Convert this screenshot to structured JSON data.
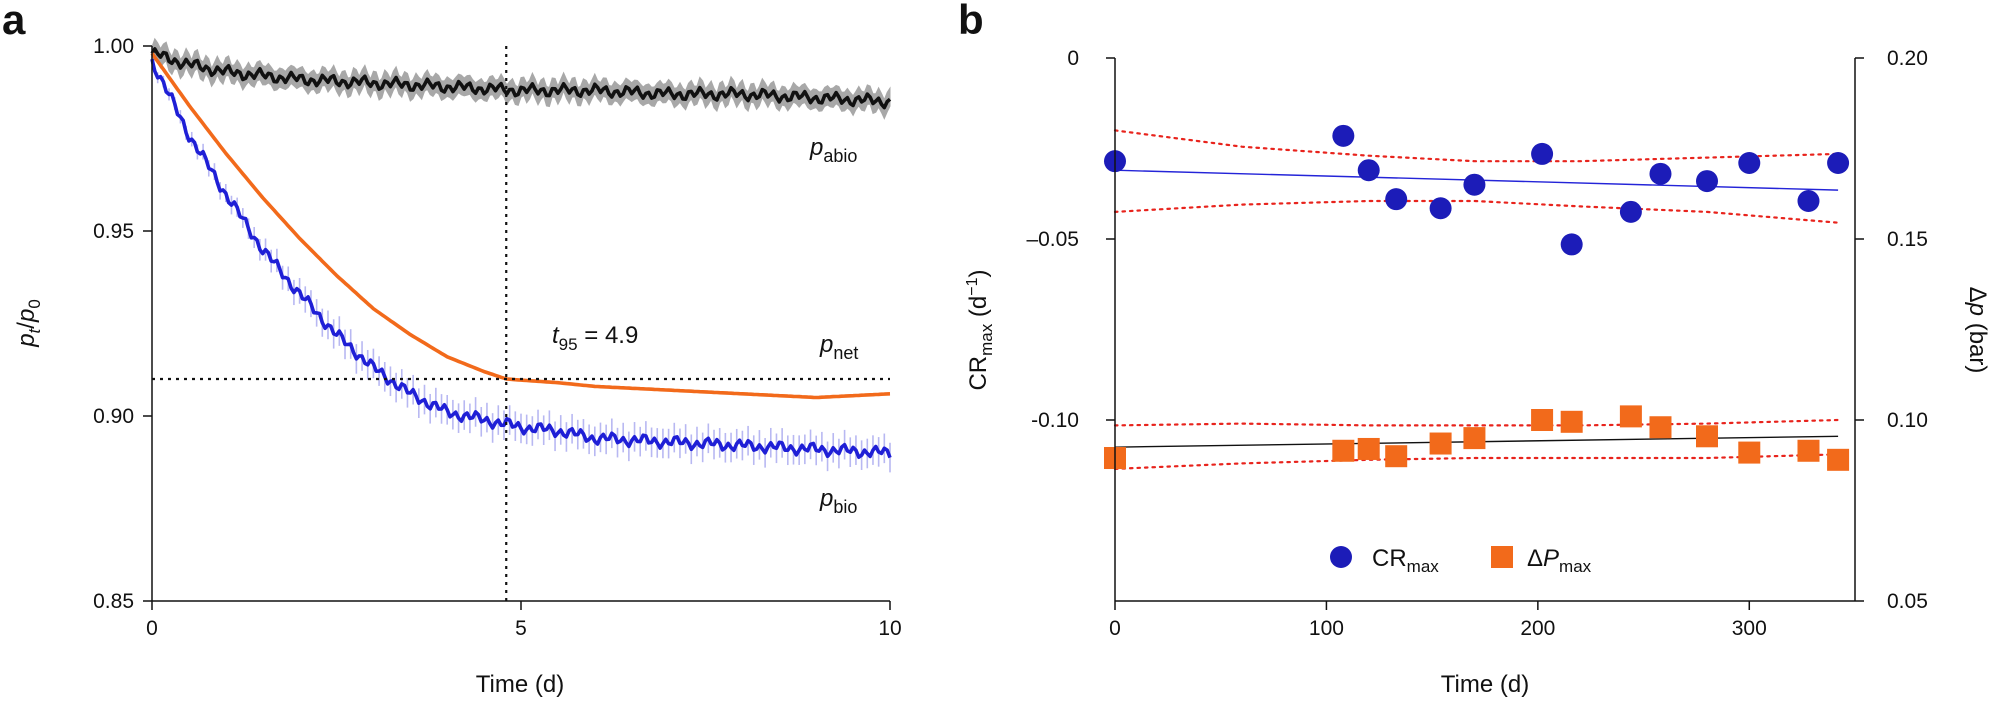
{
  "chart_data": [
    {
      "type": "line",
      "panel_label": "a",
      "xlabel": "Time (d)",
      "ylabel": {
        "p": "p",
        "t": "t",
        "slash": "/",
        "p2": "p",
        "zero": "0"
      },
      "xlim": [
        0,
        10
      ],
      "ylim": [
        0.85,
        1.0
      ],
      "x_ticks": [
        0,
        5,
        10
      ],
      "y_ticks": [
        0.85,
        0.9,
        0.95,
        1.0
      ],
      "x_tick_labels": [
        "0",
        "5",
        "10"
      ],
      "y_tick_labels": [
        "0.85",
        "0.90",
        "0.95",
        "1.00"
      ],
      "reference_lines": {
        "vertical_x": 4.8,
        "horizontal_y": 0.91
      },
      "annotation": {
        "t": "t",
        "sub": "95",
        "rest": " = 4.9"
      },
      "series": [
        {
          "name": "p_abio",
          "label_p": "p",
          "label_sub": "abio",
          "color": "#111111",
          "band_color": "#a8a8a8",
          "x": [
            0,
            0.5,
            1,
            2,
            3,
            4,
            5,
            6,
            7,
            8,
            9,
            10
          ],
          "y": [
            0.998,
            0.995,
            0.993,
            0.991,
            0.99,
            0.989,
            0.988,
            0.988,
            0.987,
            0.987,
            0.986,
            0.985
          ],
          "band": 0.003
        },
        {
          "name": "p_net",
          "label_p": "p",
          "label_sub": "net",
          "color": "#f26a1b",
          "x": [
            0,
            0.5,
            1,
            1.5,
            2,
            2.5,
            3,
            3.5,
            4,
            4.5,
            4.8,
            5.5,
            6,
            7,
            8,
            9,
            10
          ],
          "y": [
            0.998,
            0.984,
            0.971,
            0.959,
            0.948,
            0.938,
            0.929,
            0.922,
            0.916,
            0.912,
            0.91,
            0.909,
            0.908,
            0.907,
            0.906,
            0.905,
            0.906
          ]
        },
        {
          "name": "p_bio",
          "label_p": "p",
          "label_sub": "bio",
          "color": "#1f1fd6",
          "band_color": "#b8b8f2",
          "x": [
            0,
            0.5,
            1,
            1.5,
            2,
            2.5,
            3,
            3.5,
            4,
            4.5,
            5,
            5.5,
            6,
            7,
            8,
            9,
            10
          ],
          "y": [
            0.996,
            0.976,
            0.96,
            0.945,
            0.933,
            0.922,
            0.913,
            0.906,
            0.901,
            0.899,
            0.897,
            0.896,
            0.894,
            0.893,
            0.892,
            0.891,
            0.89
          ],
          "band": 0.004
        }
      ]
    },
    {
      "type": "scatter",
      "panel_label": "b",
      "xlabel": "Time (d)",
      "ylabel_left": {
        "main": "CR",
        "sub": "max",
        "unit_open": " (d",
        "sup": "−1",
        "unit_close": ")"
      },
      "ylabel_right": {
        "delta": "Δ",
        "p": "p",
        "unit": " (bar)"
      },
      "xlim": [
        0,
        350
      ],
      "ylim_left": [
        -0.15,
        0
      ],
      "ylim_right": [
        0.05,
        0.2
      ],
      "x_ticks": [
        0,
        100,
        200,
        300
      ],
      "x_tick_labels": [
        "0",
        "100",
        "200",
        "300"
      ],
      "y_left_ticks": [
        0,
        -0.05,
        -0.1
      ],
      "y_left_tick_labels": [
        "0",
        "–0.05",
        "-0.10"
      ],
      "y_right_ticks": [
        0.2,
        0.15,
        0.1,
        0.05
      ],
      "y_right_tick_labels": [
        "0.20",
        "0.15",
        "0.10",
        "0.05"
      ],
      "series": [
        {
          "name": "CR_max",
          "legend_main": "CR",
          "legend_sub": "max",
          "axis": "left",
          "marker": "circle",
          "color": "#1c1cb8",
          "x": [
            0,
            108,
            120,
            133,
            154,
            170,
            202,
            216,
            244,
            258,
            280,
            300,
            328,
            342
          ],
          "y": [
            -0.0285,
            -0.0215,
            -0.031,
            -0.039,
            -0.0415,
            -0.035,
            -0.0265,
            -0.0515,
            -0.0425,
            -0.032,
            -0.034,
            -0.029,
            -0.0395,
            -0.029
          ],
          "fit": {
            "x": [
              0,
              342
            ],
            "y": [
              -0.031,
              -0.0365
            ],
            "color": "#2424d8"
          },
          "ci_upper": {
            "x": [
              0,
              60,
              120,
              170,
              220,
              280,
              342
            ],
            "y": [
              -0.02,
              -0.0245,
              -0.027,
              -0.0285,
              -0.0285,
              -0.0275,
              -0.0265
            ]
          },
          "ci_lower": {
            "x": [
              0,
              60,
              120,
              170,
              220,
              280,
              342
            ],
            "y": [
              -0.0425,
              -0.0405,
              -0.0395,
              -0.0395,
              -0.041,
              -0.0425,
              -0.0455
            ]
          }
        },
        {
          "name": "ΔP_max",
          "legend_delta": "Δ",
          "legend_main": "P",
          "legend_sub": "max",
          "axis": "right",
          "marker": "square",
          "color": "#f26a1b",
          "x": [
            0,
            108,
            120,
            133,
            154,
            170,
            202,
            216,
            244,
            258,
            280,
            300,
            328,
            342
          ],
          "y": [
            0.0895,
            0.0915,
            0.092,
            0.09,
            0.0935,
            0.095,
            0.1,
            0.0995,
            0.101,
            0.098,
            0.0955,
            0.091,
            0.0915,
            0.089
          ],
          "fit": {
            "x": [
              0,
              342
            ],
            "y": [
              0.0925,
              0.0955
            ],
            "color": "#111111"
          },
          "ci_upper": {
            "x": [
              0,
              60,
              120,
              170,
              220,
              280,
              342
            ],
            "y": [
              0.0985,
              0.099,
              0.0985,
              0.0985,
              0.0985,
              0.099,
              0.1
            ]
          },
          "ci_lower": {
            "x": [
              0,
              60,
              120,
              170,
              220,
              280,
              342
            ],
            "y": [
              0.0865,
              0.088,
              0.089,
              0.0895,
              0.0895,
              0.0895,
              0.0905
            ]
          }
        }
      ]
    }
  ]
}
